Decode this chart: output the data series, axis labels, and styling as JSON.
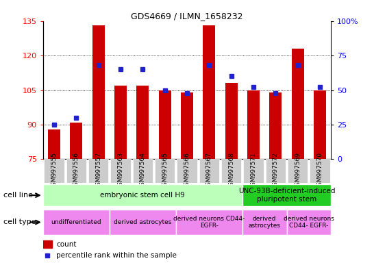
{
  "title": "GDS4669 / ILMN_1658232",
  "samples": [
    "GSM997555",
    "GSM997556",
    "GSM997557",
    "GSM997563",
    "GSM997564",
    "GSM997565",
    "GSM997566",
    "GSM997567",
    "GSM997568",
    "GSM997571",
    "GSM997572",
    "GSM997569",
    "GSM997570"
  ],
  "counts": [
    88,
    91,
    133,
    107,
    107,
    105,
    104,
    133,
    108,
    105,
    104,
    123,
    105
  ],
  "percentiles": [
    25,
    30,
    68,
    65,
    65,
    50,
    48,
    68,
    60,
    52,
    48,
    68,
    52
  ],
  "y_min": 75,
  "y_max": 135,
  "y_ticks": [
    75,
    90,
    105,
    120,
    135
  ],
  "y2_ticks_vals": [
    0,
    25,
    50,
    75,
    100
  ],
  "y2_ticks_labels": [
    "0",
    "25",
    "50",
    "75",
    "100%"
  ],
  "bar_color": "#cc0000",
  "dot_color": "#2222cc",
  "dotted_lines": [
    90,
    105,
    120
  ],
  "cell_line_groups": [
    {
      "label": "embryonic stem cell H9",
      "start": 0,
      "end": 8,
      "color": "#bbffbb"
    },
    {
      "label": "UNC-93B-deficient-induced\npluripotent stem",
      "start": 9,
      "end": 12,
      "color": "#22cc22"
    }
  ],
  "cell_type_groups": [
    {
      "label": "undifferentiated",
      "start": 0,
      "end": 2,
      "color": "#ee88ee"
    },
    {
      "label": "derived astrocytes",
      "start": 3,
      "end": 5,
      "color": "#ee88ee"
    },
    {
      "label": "derived neurons CD44-\nEGFR-",
      "start": 6,
      "end": 8,
      "color": "#ee88ee"
    },
    {
      "label": "derived\nastrocytes",
      "start": 9,
      "end": 10,
      "color": "#ee88ee"
    },
    {
      "label": "derived neurons\nCD44- EGFR-",
      "start": 11,
      "end": 12,
      "color": "#ee88ee"
    }
  ],
  "legend_count_color": "#cc0000",
  "legend_dot_color": "#2222cc"
}
